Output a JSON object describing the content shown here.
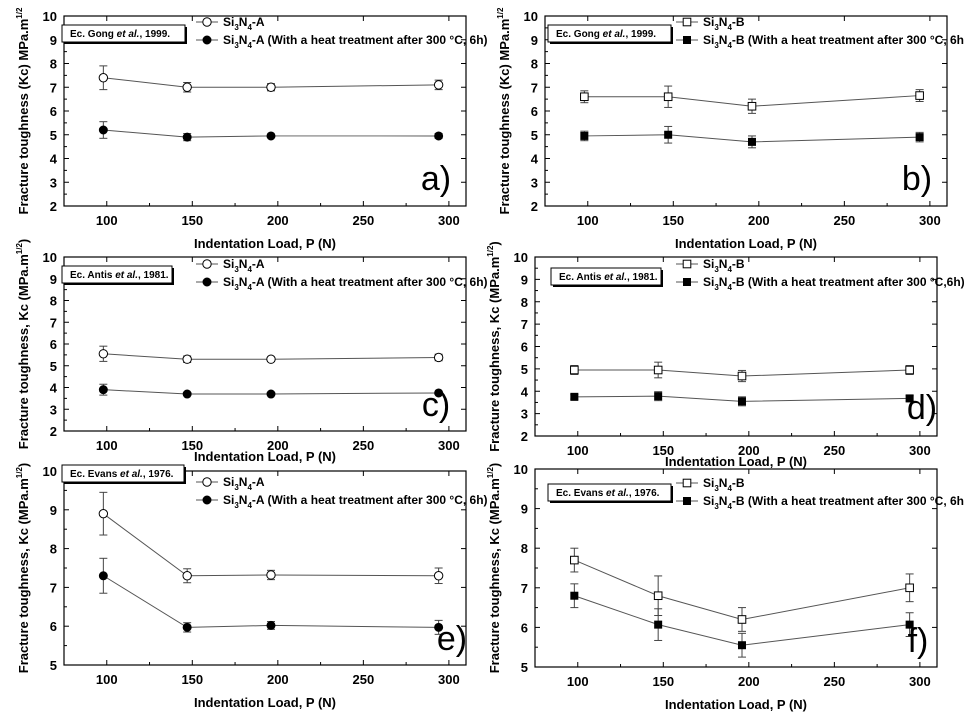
{
  "figure": {
    "panels": [
      {
        "id": "a",
        "panel_label": "a)",
        "source": {
          "prefix": "Ec. Gong ",
          "etal": "et al.",
          "suffix": ", 1999."
        },
        "ylabel": "Fracture toughness (Kc) MPa.m^{1/2}",
        "xlabel": "Indentation Load, P (N)",
        "legend": [
          {
            "marker": "open-circle",
            "label": "Si3N4-A"
          },
          {
            "marker": "filled-circle",
            "label": "Si3N4-A (With a heat treatment after 300 °C, 6h)"
          }
        ]
      },
      {
        "id": "b",
        "panel_label": "b)",
        "source": {
          "prefix": "Ec. Gong ",
          "etal": "et al.",
          "suffix": ", 1999."
        },
        "ylabel": "Fracture toughness (Kc) MPa.m^{1/2}",
        "xlabel": "Indentation Load, P (N)",
        "legend": [
          {
            "marker": "open-square",
            "label": "Si3N4-B"
          },
          {
            "marker": "filled-square",
            "label": "Si3N4-B (With a heat treatment after 300 °C, 6h)"
          }
        ]
      },
      {
        "id": "c",
        "panel_label": "c)",
        "source": {
          "prefix": "Ec. Antis ",
          "etal": "et al.",
          "suffix": ", 1981."
        },
        "ylabel": "Fracture toughness, Kc (MPa.m^{1/2})",
        "xlabel": "Indentation Load, P (N)",
        "legend": [
          {
            "marker": "open-circle",
            "label": "Si3N4-A"
          },
          {
            "marker": "filled-circle",
            "label": "Si3N4-A (With a heat treatment after 300 °C, 6h)"
          }
        ]
      },
      {
        "id": "d",
        "panel_label": "d)",
        "source": {
          "prefix": "Ec. Antis ",
          "etal": "et al.",
          "suffix": ", 1981."
        },
        "ylabel": "Fracture toughness, Kc (MPa.m^{1/2})",
        "xlabel": "Indentation Load, P (N)",
        "legend": [
          {
            "marker": "open-square",
            "label": "Si3N4-B"
          },
          {
            "marker": "filled-square",
            "label": "Si3N4-B (With a heat treatment after 300 °C,6h)"
          }
        ]
      },
      {
        "id": "e",
        "panel_label": "e)",
        "source": {
          "prefix": "Ec. Evans ",
          "etal": "et al.",
          "suffix": ", 1976."
        },
        "ylabel": "Fracture toughness, Kc (MPa.m^{1/2})",
        "xlabel": "Indentation Load, P (N)",
        "legend": [
          {
            "marker": "open-circle",
            "label": "Si3N4-A"
          },
          {
            "marker": "filled-circle",
            "label": "Si3N4-A (With a heat treatment after 300 °C, 6h)"
          }
        ]
      },
      {
        "id": "f",
        "panel_label": "f)",
        "source": {
          "prefix": "Ec. Evans ",
          "etal": "et al.",
          "suffix": ", 1976."
        },
        "ylabel": "Fracture toughness, Kc (MPa.m^{1/2})",
        "xlabel": "Indentation Load, P (N)",
        "legend": [
          {
            "marker": "open-square",
            "label": "Si3N4-B"
          },
          {
            "marker": "filled-square",
            "label": "Si3N4-B (With a heat treatment after 300 °C, 6h)"
          }
        ]
      }
    ]
  },
  "chart_data": [
    {
      "panel": "a",
      "type": "line",
      "xlim": [
        75,
        310
      ],
      "ylim": [
        2,
        10
      ],
      "xticks": [
        100,
        150,
        200,
        250,
        300
      ],
      "yticks": [
        2,
        3,
        4,
        5,
        6,
        7,
        8,
        9,
        10
      ],
      "series": [
        {
          "name": "Si3N4-A",
          "x": [
            98,
            147,
            196,
            294
          ],
          "y": [
            7.4,
            7.0,
            7.0,
            7.1
          ],
          "err": [
            0.5,
            0.2,
            0.15,
            0.2
          ]
        },
        {
          "name": "Si3N4-A (With a heat treatment after 300 °C, 6h)",
          "x": [
            98,
            147,
            196,
            294
          ],
          "y": [
            5.2,
            4.9,
            4.95,
            4.95
          ],
          "err": [
            0.35,
            0.15,
            0.05,
            0.1
          ]
        }
      ]
    },
    {
      "panel": "b",
      "type": "line",
      "xlim": [
        75,
        310
      ],
      "ylim": [
        2,
        10
      ],
      "xticks": [
        100,
        150,
        200,
        250,
        300
      ],
      "yticks": [
        2,
        3,
        4,
        5,
        6,
        7,
        8,
        9,
        10
      ],
      "series": [
        {
          "name": "Si3N4-B",
          "x": [
            98,
            147,
            196,
            294
          ],
          "y": [
            6.6,
            6.6,
            6.2,
            6.65
          ],
          "err": [
            0.25,
            0.45,
            0.3,
            0.25
          ]
        },
        {
          "name": "Si3N4-B (With a heat treatment after 300 °C, 6h)",
          "x": [
            98,
            147,
            196,
            294
          ],
          "y": [
            4.95,
            5.0,
            4.7,
            4.9
          ],
          "err": [
            0.2,
            0.35,
            0.25,
            0.2
          ]
        }
      ]
    },
    {
      "panel": "c",
      "type": "line",
      "xlim": [
        75,
        310
      ],
      "ylim": [
        2,
        10
      ],
      "xticks": [
        100,
        150,
        200,
        250,
        300
      ],
      "yticks": [
        2,
        3,
        4,
        5,
        6,
        7,
        8,
        9,
        10
      ],
      "series": [
        {
          "name": "Si3N4-A",
          "x": [
            98,
            147,
            196,
            294
          ],
          "y": [
            5.55,
            5.3,
            5.3,
            5.38
          ],
          "err": [
            0.35,
            0.15,
            0.1,
            0.15
          ]
        },
        {
          "name": "Si3N4-A (With a heat treatment after 300 °C, 6h)",
          "x": [
            98,
            147,
            196,
            294
          ],
          "y": [
            3.9,
            3.7,
            3.7,
            3.75
          ],
          "err": [
            0.25,
            0.05,
            0.05,
            0.05
          ]
        }
      ]
    },
    {
      "panel": "d",
      "type": "line",
      "xlim": [
        75,
        310
      ],
      "ylim": [
        2,
        10
      ],
      "xticks": [
        100,
        150,
        200,
        250,
        300
      ],
      "yticks": [
        2,
        3,
        4,
        5,
        6,
        7,
        8,
        9,
        10
      ],
      "series": [
        {
          "name": "Si3N4-B",
          "x": [
            98,
            147,
            196,
            294
          ],
          "y": [
            4.95,
            4.95,
            4.68,
            4.95
          ],
          "err": [
            0.2,
            0.35,
            0.25,
            0.2
          ]
        },
        {
          "name": "Si3N4-B (With a heat treatment after 300 °C,6h)",
          "x": [
            98,
            147,
            196,
            294
          ],
          "y": [
            3.75,
            3.78,
            3.55,
            3.68
          ],
          "err": [
            0.1,
            0.2,
            0.2,
            0.12
          ]
        }
      ]
    },
    {
      "panel": "e",
      "type": "line",
      "xlim": [
        75,
        310
      ],
      "ylim": [
        5,
        10
      ],
      "xticks": [
        100,
        150,
        200,
        250,
        300
      ],
      "yticks": [
        5,
        6,
        7,
        8,
        9,
        10
      ],
      "series": [
        {
          "name": "Si3N4-A",
          "x": [
            98,
            147,
            196,
            294
          ],
          "y": [
            8.9,
            7.3,
            7.32,
            7.3
          ],
          "err": [
            0.55,
            0.18,
            0.12,
            0.2
          ]
        },
        {
          "name": "Si3N4-A (With a heat treatment after 300 °C, 6h)",
          "x": [
            98,
            147,
            196,
            294
          ],
          "y": [
            7.3,
            5.97,
            6.02,
            5.97
          ],
          "err": [
            0.45,
            0.12,
            0.1,
            0.18
          ]
        }
      ]
    },
    {
      "panel": "f",
      "type": "line",
      "xlim": [
        75,
        310
      ],
      "ylim": [
        5,
        10
      ],
      "xticks": [
        100,
        150,
        200,
        250,
        300
      ],
      "yticks": [
        5,
        6,
        7,
        8,
        9,
        10
      ],
      "series": [
        {
          "name": "Si3N4-B",
          "x": [
            98,
            147,
            196,
            294
          ],
          "y": [
            7.7,
            6.8,
            6.2,
            7.0
          ],
          "err": [
            0.3,
            0.5,
            0.3,
            0.35
          ]
        },
        {
          "name": "Si3N4-B (With a heat treatment after 300 °C, 6h)",
          "x": [
            98,
            147,
            196,
            294
          ],
          "y": [
            6.8,
            6.07,
            5.55,
            6.07
          ],
          "err": [
            0.3,
            0.4,
            0.3,
            0.3
          ]
        }
      ]
    }
  ]
}
